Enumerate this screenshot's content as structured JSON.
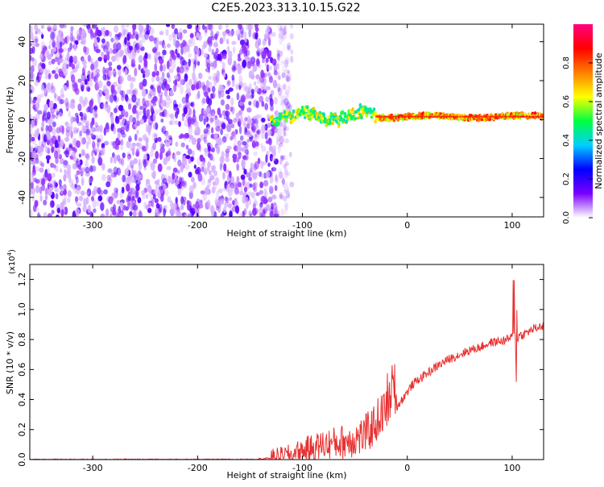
{
  "figure_title": "C2E5.2023.313.10.15.G22",
  "chart_data": [
    {
      "type": "heatmap",
      "title": "",
      "xlabel": "Height of straight line (km)",
      "ylabel": "Frequency (Hz)",
      "xlim": [
        -360,
        130
      ],
      "ylim": [
        -50,
        49
      ],
      "x_ticks": [
        -300,
        -200,
        -100,
        0,
        100
      ],
      "x_tick_labels": [
        "-300",
        "-200",
        "-100",
        "0",
        "100"
      ],
      "y_ticks": [
        -40,
        -20,
        0,
        20,
        40
      ],
      "y_tick_labels": [
        "-40",
        "-20",
        "0",
        "20",
        "40"
      ],
      "colorbar": {
        "label": "Normalized spectral amplitude",
        "range": [
          0,
          1
        ],
        "ticks": [
          0.0,
          0.2,
          0.4,
          0.6,
          0.8
        ],
        "tick_labels": [
          "0.0",
          "0.2",
          "0.4",
          "0.6",
          "0.8"
        ],
        "colors": [
          "#ffffff",
          "#7a00ff",
          "#0000ff",
          "#00d0ff",
          "#00ff40",
          "#ffff00",
          "#ff7f00",
          "#ff0000",
          "#ff0080"
        ]
      },
      "regions": [
        {
          "name": "broadband noise",
          "x_range": [
            -360,
            -125
          ],
          "freq_range": [
            -50,
            49
          ],
          "amplitude": 0.08
        },
        {
          "name": "carrier band",
          "x_range": [
            -130,
            130
          ],
          "freq_center": 1.5,
          "amplitude": 0.85
        }
      ],
      "grid": false
    },
    {
      "type": "line",
      "title": "",
      "xlabel": "Height of straight line (km)",
      "ylabel": "SNR (10 * v/v)",
      "y_multiplier": "(x10",
      "y_multiplier_exp": "4",
      "y_multiplier_close": ")",
      "xlim": [
        -360,
        130
      ],
      "ylim": [
        0,
        1.3
      ],
      "x_ticks": [
        -300,
        -200,
        -100,
        0,
        100
      ],
      "x_tick_labels": [
        "-300",
        "-200",
        "-100",
        "0",
        "100"
      ],
      "y_ticks": [
        0.0,
        0.2,
        0.4,
        0.6,
        0.8,
        1.0,
        1.2
      ],
      "y_tick_labels": [
        "0.0",
        "0.2",
        "0.4",
        "0.6",
        "0.8",
        "1.0",
        "1.2"
      ],
      "color": "#e83030",
      "x": [
        -360,
        -300,
        -250,
        -200,
        -150,
        -130,
        -120,
        -110,
        -100,
        -90,
        -80,
        -70,
        -60,
        -50,
        -45,
        -40,
        -35,
        -30,
        -25,
        -20,
        -15,
        -12,
        -10,
        -5,
        0,
        5,
        10,
        20,
        30,
        40,
        50,
        60,
        70,
        80,
        90,
        95,
        100,
        103,
        104,
        105,
        106,
        108,
        110,
        115,
        120,
        125,
        130
      ],
      "y": [
        0.0,
        0.0,
        0.0,
        0.0,
        0.0,
        0.01,
        0.02,
        0.03,
        0.06,
        0.08,
        0.1,
        0.11,
        0.12,
        0.14,
        0.15,
        0.17,
        0.2,
        0.25,
        0.3,
        0.33,
        0.4,
        0.5,
        0.35,
        0.4,
        0.45,
        0.5,
        0.53,
        0.58,
        0.63,
        0.67,
        0.7,
        0.73,
        0.75,
        0.78,
        0.79,
        0.8,
        0.82,
        0.85,
        0.5,
        0.8,
        0.82,
        0.83,
        0.83,
        0.85,
        0.87,
        0.88,
        0.89
      ],
      "grid": false
    }
  ]
}
